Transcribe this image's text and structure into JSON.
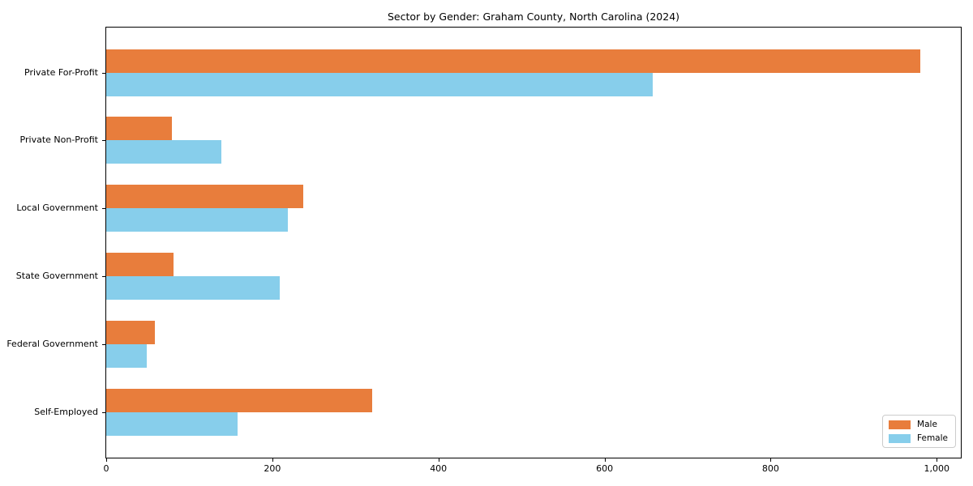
{
  "title": "Sector by Gender: Graham County, North Carolina (2024)",
  "chart_data": {
    "type": "bar",
    "orientation": "horizontal",
    "title": "Sector by Gender: Graham County, North Carolina (2024)",
    "categories": [
      "Private For-Profit",
      "Private Non-Profit",
      "Local Government",
      "State Government",
      "Federal Government",
      "Self-Employed"
    ],
    "series": [
      {
        "name": "Male",
        "color": "#e87d3c",
        "values": [
          980,
          79,
          237,
          81,
          59,
          320
        ]
      },
      {
        "name": "Female",
        "color": "#87ceeb",
        "values": [
          658,
          139,
          219,
          209,
          49,
          158
        ]
      }
    ],
    "xlabel": "",
    "ylabel": "",
    "xlim": [
      0,
      1029
    ],
    "xticks": [
      0,
      200,
      400,
      600,
      800,
      1000
    ],
    "xtick_labels": [
      "0",
      "200",
      "400",
      "600",
      "800",
      "1,000"
    ],
    "grid": false,
    "legend_position": "lower right"
  },
  "colors": {
    "male": "#e87d3c",
    "female": "#87ceeb",
    "axis": "#000000",
    "legend_border": "#cccccc",
    "background": "#ffffff"
  }
}
